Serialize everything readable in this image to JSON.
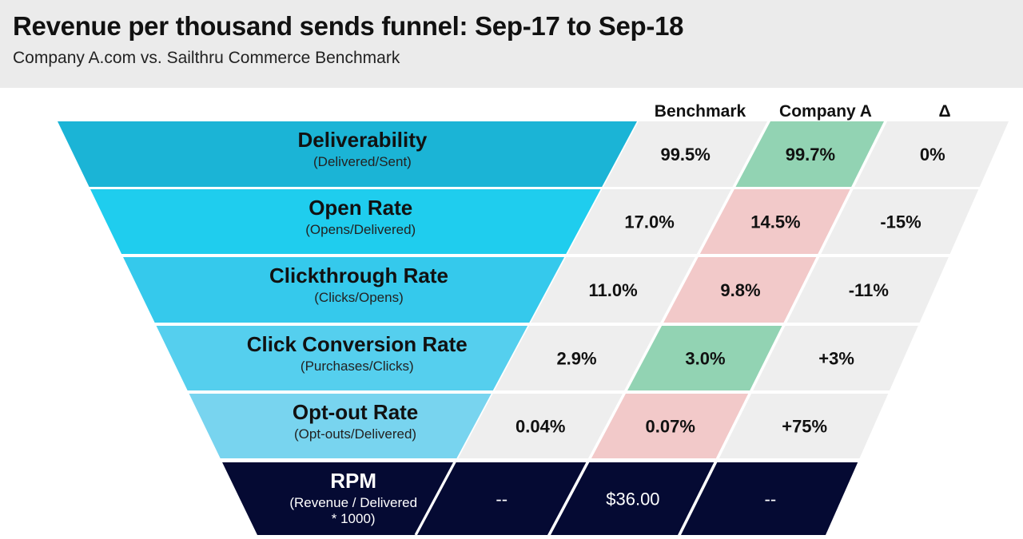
{
  "header": {
    "title": "Revenue per thousand sends funnel: Sep-17 to Sep-18",
    "subtitle": "Company A.com vs. Sailthru Commerce Benchmark"
  },
  "chart_data": {
    "type": "table",
    "columns": [
      "Benchmark",
      "Company A",
      "Δ"
    ],
    "rows": [
      {
        "label": "Deliverability",
        "sublabel": "(Delivered/Sent)",
        "benchmark": "99.5%",
        "company": "99.7%",
        "delta": "0%",
        "status": "better"
      },
      {
        "label": "Open Rate",
        "sublabel": "(Opens/Delivered)",
        "benchmark": "17.0%",
        "company": "14.5%",
        "delta": "-15%",
        "status": "worse"
      },
      {
        "label": "Clickthrough Rate",
        "sublabel": "(Clicks/Opens)",
        "benchmark": "11.0%",
        "company": "9.8%",
        "delta": "-11%",
        "status": "worse"
      },
      {
        "label": "Click Conversion Rate",
        "sublabel": "(Purchases/Clicks)",
        "benchmark": "2.9%",
        "company": "3.0%",
        "delta": "+3%",
        "status": "better"
      },
      {
        "label": "Opt-out Rate",
        "sublabel": "(Opt-outs/Delivered)",
        "benchmark": "0.04%",
        "company": "0.07%",
        "delta": "+75%",
        "status": "worse"
      },
      {
        "label": "RPM",
        "sublabel": "(Revenue / Delivered\n* 1000)",
        "benchmark": "--",
        "company": "$36.00",
        "delta": "--",
        "status": "neutral"
      }
    ],
    "colors": {
      "funnel": [
        "#1bb4d6",
        "#1fcdee",
        "#35c9ec",
        "#55cfee",
        "#78d4ef",
        "#050a33"
      ],
      "better": "#92d3b3",
      "worse": "#f2c9c9",
      "neutral_cell": "#eeeeee",
      "rpm_row": "#050a33"
    }
  }
}
